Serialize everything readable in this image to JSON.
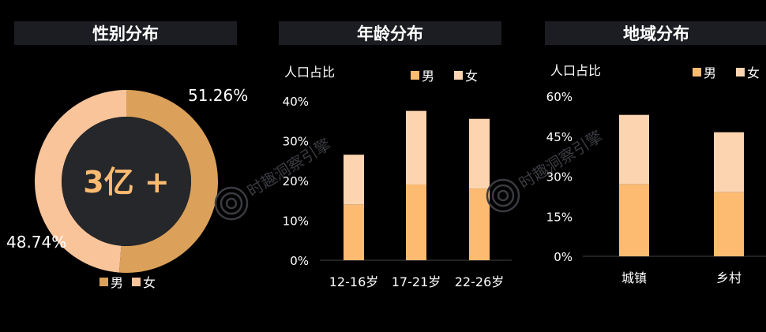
{
  "colors": {
    "male": "#dba05a",
    "female": "#f9c49a",
    "male_bar": "#fcbb71",
    "female_bar": "#fcd5b0",
    "center": "#26272b",
    "title_bg": "#1c1d22"
  },
  "panels": {
    "gender": {
      "title": "性别分布"
    },
    "age": {
      "title": "年龄分布"
    },
    "region": {
      "title": "地域分布"
    }
  },
  "watermark": "时趣洞察引擎",
  "chart_data": [
    {
      "type": "pie",
      "title": "性别分布",
      "center_text": "3亿 +",
      "slices": [
        {
          "name": "男",
          "value": 51.26,
          "label": "51.26%"
        },
        {
          "name": "女",
          "value": 48.74,
          "label": "48.74%"
        }
      ],
      "legend": [
        "男",
        "女"
      ]
    },
    {
      "type": "bar",
      "stacked": true,
      "title": "年龄分布",
      "ylabel": "人口占比",
      "categories": [
        "12-16岁",
        "17-21岁",
        "22-26岁"
      ],
      "series": [
        {
          "name": "男",
          "values": [
            14,
            19,
            18
          ]
        },
        {
          "name": "女",
          "values": [
            12.5,
            18.5,
            17.5
          ]
        }
      ],
      "ylim": [
        0,
        40
      ],
      "yticks": [
        "0%",
        "10%",
        "20%",
        "30%",
        "40%"
      ],
      "legend": [
        "男",
        "女"
      ]
    },
    {
      "type": "bar",
      "stacked": true,
      "title": "地域分布",
      "ylabel": "人口占比",
      "categories": [
        "城镇",
        "乡村"
      ],
      "series": [
        {
          "name": "男",
          "values": [
            27,
            24
          ]
        },
        {
          "name": "女",
          "values": [
            26,
            22.5
          ]
        }
      ],
      "ylim": [
        0,
        60
      ],
      "yticks": [
        "0%",
        "15%",
        "30%",
        "45%",
        "60%"
      ],
      "legend": [
        "男",
        "女"
      ]
    }
  ]
}
